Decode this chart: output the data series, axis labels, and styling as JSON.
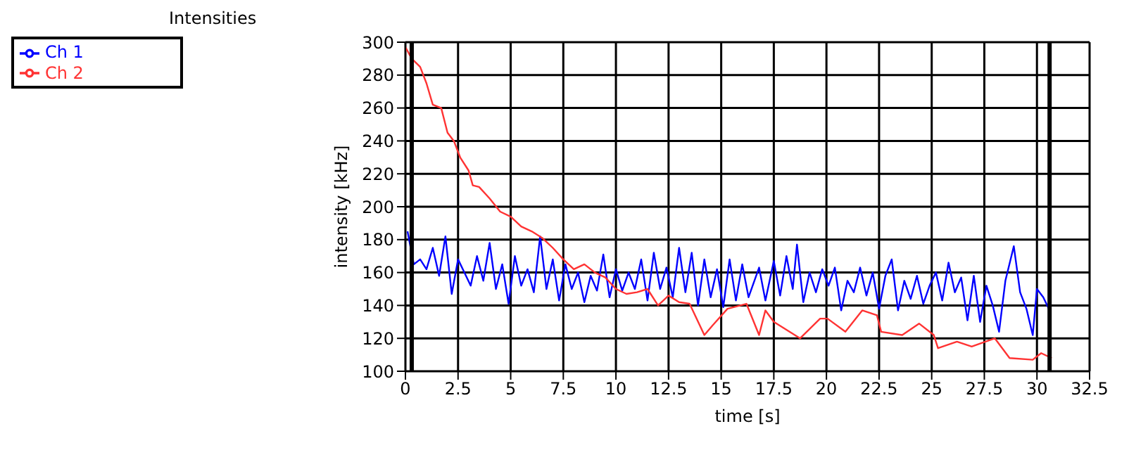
{
  "chart_data": {
    "type": "line",
    "title": "Intensities",
    "xlabel": "time [s]",
    "ylabel": "intensity [kHz]",
    "xlim": [
      0,
      32.5
    ],
    "xticks": [
      0,
      2.5,
      5,
      7.5,
      10,
      12.5,
      15,
      17.5,
      20,
      22.5,
      25,
      27.5,
      30,
      32.5
    ],
    "ylim": [
      100,
      300
    ],
    "yticks": [
      100,
      120,
      140,
      160,
      180,
      200,
      220,
      240,
      260,
      280,
      300
    ],
    "grid": true,
    "legend": "top left",
    "marker": "none",
    "line_style": "solid",
    "ref_lines": [
      {
        "axis": "x",
        "value": 0.3,
        "color": "#000000"
      },
      {
        "axis": "x",
        "value": 30.6,
        "color": "#000000"
      }
    ],
    "series": [
      {
        "name": "Ch 1",
        "color": "#0000ff",
        "x": [
          0.1,
          0.4,
          0.7,
          1.0,
          1.3,
          1.6,
          1.9,
          2.2,
          2.5,
          2.8,
          3.1,
          3.4,
          3.7,
          4.0,
          4.3,
          4.6,
          4.9,
          5.2,
          5.5,
          5.8,
          6.1,
          6.4,
          6.7,
          7.0,
          7.3,
          7.6,
          7.9,
          8.2,
          8.5,
          8.8,
          9.1,
          9.4,
          9.7,
          10.0,
          10.3,
          10.6,
          10.9,
          11.2,
          11.5,
          11.8,
          12.1,
          12.4,
          12.7,
          13.0,
          13.3,
          13.6,
          13.9,
          14.2,
          14.5,
          14.8,
          15.1,
          15.4,
          15.7,
          16.0,
          16.3,
          16.8,
          17.1,
          17.5,
          17.8,
          18.1,
          18.4,
          18.6,
          18.9,
          19.2,
          19.5,
          19.8,
          20.1,
          20.4,
          20.7,
          21.0,
          21.3,
          21.6,
          21.9,
          22.2,
          22.5,
          22.8,
          23.1,
          23.4,
          23.7,
          24.0,
          24.3,
          24.6,
          24.9,
          25.2,
          25.5,
          25.8,
          26.1,
          26.4,
          26.7,
          27.0,
          27.3,
          27.6,
          27.9,
          28.2,
          28.5,
          28.9,
          29.2,
          29.5,
          29.8,
          30.0,
          30.3,
          30.6
        ],
        "values": [
          185,
          165,
          168,
          162,
          175,
          158,
          182,
          147,
          168,
          160,
          152,
          170,
          155,
          178,
          150,
          165,
          141,
          170,
          152,
          162,
          148,
          182,
          150,
          168,
          143,
          165,
          150,
          160,
          142,
          158,
          149,
          171,
          145,
          162,
          149,
          160,
          150,
          168,
          143,
          172,
          150,
          163,
          145,
          175,
          148,
          172,
          140,
          168,
          145,
          162,
          139,
          168,
          143,
          165,
          145,
          163,
          143,
          167,
          146,
          170,
          150,
          177,
          142,
          160,
          148,
          162,
          152,
          163,
          137,
          155,
          148,
          163,
          146,
          160,
          138,
          158,
          168,
          137,
          155,
          144,
          158,
          141,
          152,
          160,
          143,
          166,
          148,
          157,
          131,
          158,
          130,
          152,
          140,
          124,
          155,
          176,
          148,
          138,
          122,
          150,
          145,
          137
        ]
      },
      {
        "name": "Ch 2",
        "color": "#ff3333",
        "x": [
          0,
          0.3,
          0.7,
          1.0,
          1.3,
          1.7,
          2.0,
          2.3,
          2.6,
          3.0,
          3.2,
          3.5,
          4.0,
          4.5,
          5.0,
          5.5,
          6.0,
          6.5,
          7.0,
          7.5,
          8.0,
          8.5,
          9.0,
          9.5,
          10.0,
          10.5,
          11.0,
          11.5,
          12.0,
          12.5,
          13.0,
          13.5,
          14.2,
          14.6,
          15.3,
          16.2,
          16.8,
          17.1,
          17.5,
          18.75,
          19.7,
          20.05,
          20.9,
          21.7,
          22.4,
          22.6,
          23.6,
          24.4,
          25.1,
          25.3,
          26.2,
          26.9,
          28.0,
          28.7,
          29.8,
          30.2,
          30.7
        ],
        "values": [
          297,
          290,
          285,
          275,
          262,
          260,
          245,
          240,
          230,
          222,
          213,
          212,
          205,
          197,
          194,
          188,
          185,
          181,
          175,
          168,
          162,
          165,
          160,
          157,
          150,
          147,
          148,
          150,
          140,
          146,
          142,
          141,
          122,
          128,
          138,
          141,
          122,
          137,
          130,
          120,
          132,
          132,
          124,
          137,
          134,
          124,
          122,
          129,
          122,
          114,
          118,
          115,
          120,
          108,
          107,
          111,
          108
        ]
      }
    ]
  }
}
